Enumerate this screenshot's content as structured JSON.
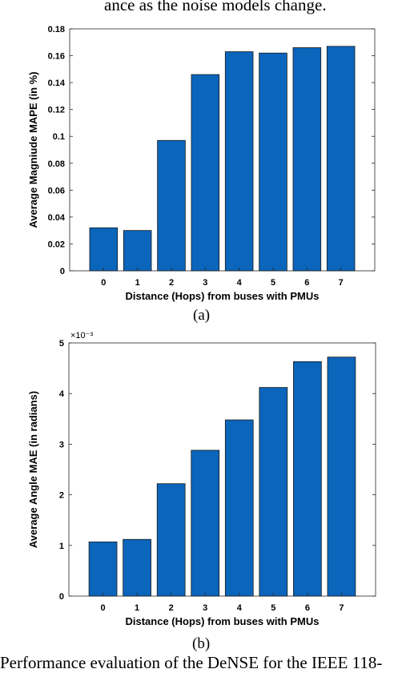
{
  "top_text": "ance as the noise models change.",
  "bottom_text": "Performance evaluation of the DeNSE for the IEEE 118-",
  "colors": {
    "bar": "#0b65ba",
    "bar_edge": "#1a1a1a",
    "axis": "#262626"
  },
  "chart_data": [
    {
      "type": "bar",
      "caption": "(a)",
      "xlabel": "Distance (Hops) from buses with PMUs",
      "ylabel": "Average Magniude MAPE (in %)",
      "categories": [
        "0",
        "1",
        "2",
        "3",
        "4",
        "5",
        "6",
        "7"
      ],
      "values": [
        0.032,
        0.03,
        0.097,
        0.146,
        0.163,
        0.162,
        0.166,
        0.167
      ],
      "ylim": [
        0,
        0.18
      ],
      "yticks": [
        0,
        0.02,
        0.04,
        0.06,
        0.08,
        0.1,
        0.12,
        0.14,
        0.16,
        0.18
      ],
      "ytick_labels": [
        "0",
        "0.02",
        "0.04",
        "0.06",
        "0.08",
        "0.1",
        "0.12",
        "0.14",
        "0.16",
        "0.18"
      ],
      "exponent_label": ""
    },
    {
      "type": "bar",
      "caption": "(b)",
      "xlabel": "Distance (Hops) from buses with PMUs",
      "ylabel": "Average Angle MAE (in radians)",
      "categories": [
        "0",
        "1",
        "2",
        "3",
        "4",
        "5",
        "6",
        "7"
      ],
      "values": [
        1.07,
        1.12,
        2.22,
        2.88,
        3.48,
        4.12,
        4.63,
        4.72
      ],
      "ylim": [
        0,
        5
      ],
      "yticks": [
        0,
        1,
        2,
        3,
        4,
        5
      ],
      "ytick_labels": [
        "0",
        "1",
        "2",
        "3",
        "4",
        "5"
      ],
      "exponent_label": "×10⁻³"
    }
  ]
}
